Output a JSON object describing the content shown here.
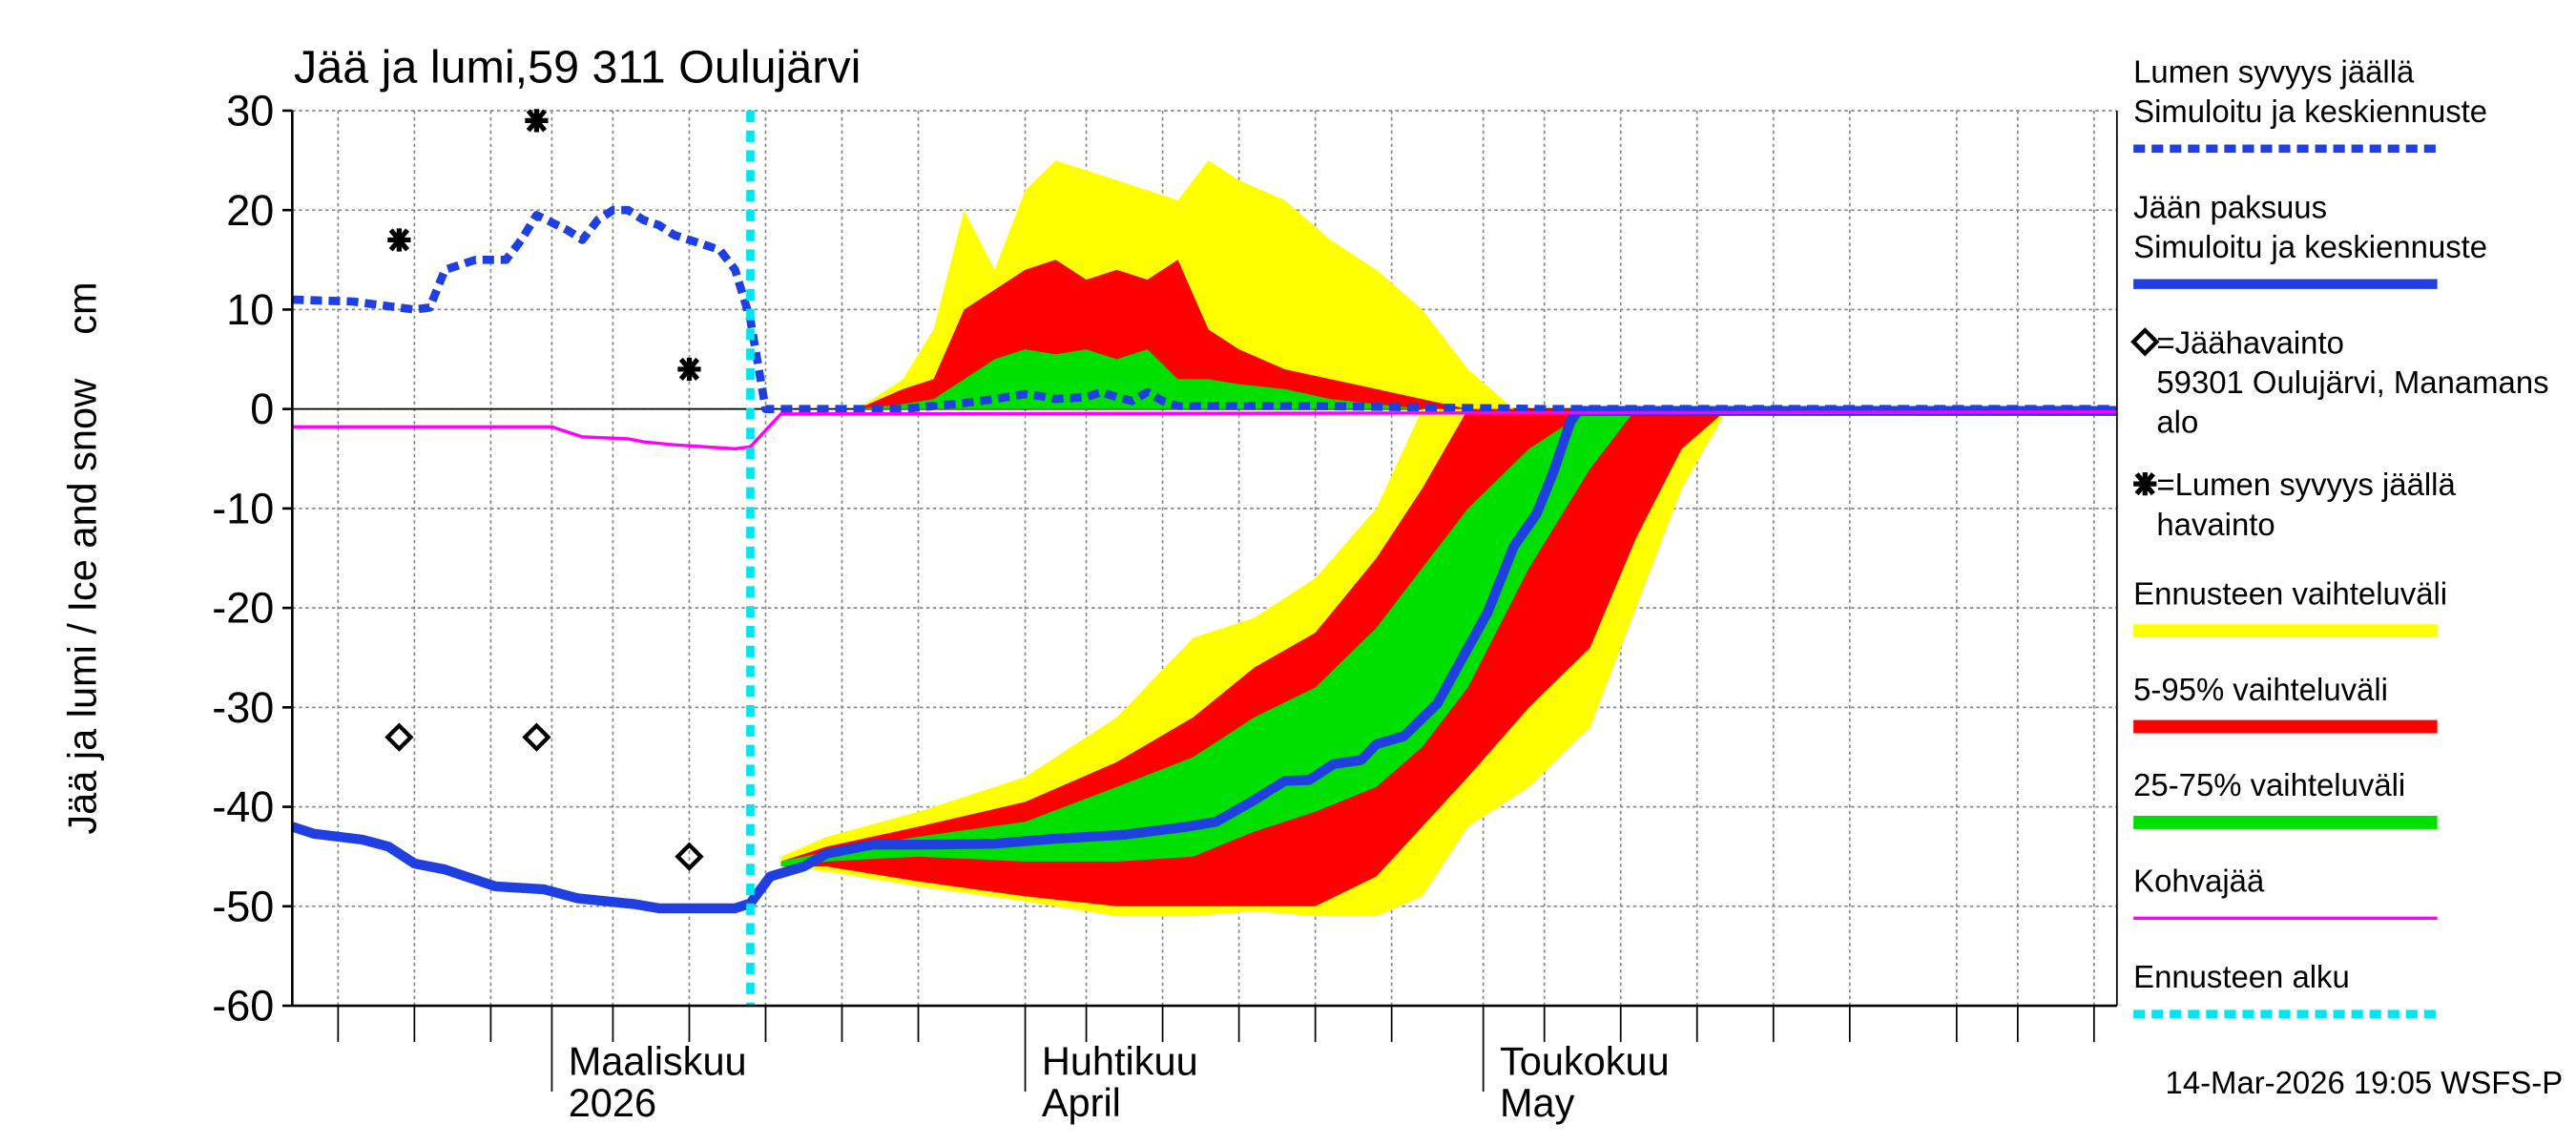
{
  "chart_data": {
    "type": "line",
    "title": "Jää ja lumi,59 311 Oulujärvi",
    "y_label": "Jää ja lumi / Ice and snow    cm",
    "footer": "14-Mar-2026 19:05 WSFS-P",
    "xlim": [
      43,
      162.5
    ],
    "ylim": [
      -60,
      30
    ],
    "yticks": [
      -60,
      -50,
      -40,
      -30,
      -20,
      -10,
      0,
      10,
      20,
      30
    ],
    "xticks": [
      {
        "value": 60,
        "label": [
          "Maaliskuu",
          "2026"
        ]
      },
      {
        "value": 91,
        "label": [
          "Huhtikuu",
          "April"
        ]
      },
      {
        "value": 121,
        "label": [
          "Toukokuu",
          "May"
        ]
      }
    ],
    "xgrid": [
      46,
      51,
      56,
      64,
      69,
      74,
      79,
      84,
      95,
      100,
      105,
      110,
      115,
      125,
      130,
      135,
      140,
      145,
      152,
      156,
      161
    ],
    "grid": true,
    "series": [
      {
        "name": [
          "Lumen syvyys jäällä",
          "Simuloitu ja keskiennuste"
        ],
        "kind": "line",
        "dashed": true,
        "width": 5,
        "color": "#1f3fe0",
        "x": [
          43,
          47,
          51,
          52,
          53,
          55,
          57,
          58,
          59,
          61,
          62,
          63,
          64,
          65,
          66,
          67,
          68,
          70,
          71,
          72,
          73,
          74,
          75,
          83,
          85,
          87,
          89,
          91,
          92,
          93,
          95,
          96,
          97,
          98,
          99,
          100,
          101,
          110,
          115,
          125,
          162
        ],
        "values": [
          11,
          10.8,
          10,
          10.2,
          14,
          15,
          15,
          17,
          19.5,
          18,
          17,
          19,
          20,
          20,
          19,
          18.5,
          17.5,
          16.5,
          16,
          14,
          9,
          0,
          0,
          0,
          0.3,
          0.6,
          1,
          1.5,
          1.3,
          1,
          1.2,
          1.7,
          1.2,
          0.8,
          1.7,
          0.8,
          0.3,
          0.3,
          0.2,
          0,
          0
        ]
      },
      {
        "name": [
          "Jään paksuus",
          "Simuloitu ja keskiennuste"
        ],
        "kind": "line",
        "dashed": false,
        "width": 6,
        "color": "#1f3fe0",
        "x": [
          43,
          44.4,
          47.6,
          49.3,
          51,
          53,
          56.3,
          59.5,
          61.7,
          65.5,
          67,
          72,
          73,
          74.3,
          76.5,
          78,
          81,
          84.5,
          89,
          93,
          97.5,
          101.6,
          103.5,
          105.8,
          108,
          109.6,
          111.2,
          113,
          114,
          115.8,
          118,
          119.5,
          121.3,
          123,
          124.5,
          125.6,
          126.7,
          127.2,
          162.5
        ],
        "values": [
          -42,
          -42.7,
          -43.3,
          -44,
          -45.7,
          -46.3,
          -48,
          -48.3,
          -49.2,
          -49.8,
          -50.2,
          -50.2,
          -49.7,
          -47,
          -46,
          -44.7,
          -43.8,
          -43.8,
          -43.7,
          -43.2,
          -42.8,
          -42,
          -41.5,
          -39.5,
          -37.4,
          -37.3,
          -35.7,
          -35.3,
          -33.7,
          -32.9,
          -29.6,
          -25.4,
          -20.4,
          -13.8,
          -10.5,
          -6.3,
          -1.3,
          -0.2,
          -0.2
        ]
      },
      {
        "name": [
          "=Jäähavainto",
          "59301 Oulujärvi, Manamans",
          "alo"
        ],
        "kind": "diamond",
        "color": "#000000",
        "x": [
          50,
          59,
          69
        ],
        "values": [
          -33,
          -33,
          -45
        ]
      },
      {
        "name": [
          "=Lumen syvyys jäällä",
          "havainto"
        ],
        "kind": "asterisk",
        "color": "#000000",
        "x": [
          50,
          59,
          69
        ],
        "values": [
          17,
          29,
          4
        ]
      },
      {
        "name": [
          "Ennusteen vaihteluväli"
        ],
        "kind": "band",
        "color": "#ffff00",
        "parts": [
          {
            "x": [
              80,
              83,
              85,
              87,
              89,
              91,
              93,
              95,
              97,
              99,
              101,
              103,
              105,
              108,
              111,
              114,
              117,
              120,
              123
            ],
            "high": [
              0,
              3,
              8,
              20,
              14,
              22,
              25,
              24,
              23,
              22,
              21,
              25,
              23,
              21,
              17,
              14,
              10,
              4,
              0
            ],
            "low": [
              0,
              0,
              0,
              0,
              0,
              0,
              0,
              0,
              0,
              0,
              0,
              0,
              0,
              0,
              0,
              0,
              0,
              0,
              0
            ]
          },
          {
            "x": [
              75,
              78,
              84,
              91,
              97,
              102,
              106,
              110,
              114,
              117,
              120,
              124,
              128,
              131,
              134,
              137
            ],
            "high": [
              -45,
              -43,
              -40.5,
              -37,
              -31,
              -23,
              -21,
              -17,
              -10,
              0,
              0,
              0,
              0,
              0,
              0,
              0
            ],
            "low": [
              -46,
              -46.5,
              -48,
              -49.5,
              -51,
              -51,
              -50.5,
              -51,
              -51,
              -49,
              -42,
              -38,
              -32,
              -20,
              -8,
              0
            ]
          }
        ]
      },
      {
        "name": [
          "5-95% vaihteluväli"
        ],
        "kind": "band",
        "color": "#ff0000",
        "parts": [
          {
            "x": [
              80,
              83,
              85,
              87,
              89,
              91,
              93,
              95,
              97,
              99,
              101,
              103,
              105,
              108,
              111,
              114,
              117,
              120,
              123
            ],
            "high": [
              0,
              2,
              3,
              10,
              12,
              14,
              15,
              13,
              14,
              13,
              15,
              8,
              6,
              4,
              3,
              2,
              1,
              0,
              0
            ],
            "low": [
              0,
              0,
              0,
              0,
              0,
              0,
              0,
              0,
              0,
              0,
              0,
              0,
              0,
              0,
              0,
              0,
              0,
              0,
              0
            ]
          },
          {
            "x": [
              75,
              78,
              84,
              91,
              97,
              102,
              106,
              110,
              114,
              117,
              120,
              124,
              128,
              131,
              134,
              137
            ],
            "high": [
              -45.5,
              -44,
              -42,
              -39.5,
              -35.5,
              -31,
              -26,
              -22.5,
              -15,
              -8,
              0,
              0,
              0,
              0,
              0,
              0
            ],
            "low": [
              -46,
              -46,
              -47.5,
              -49,
              -50,
              -50,
              -50,
              -50,
              -47,
              -42,
              -37,
              -30,
              -24,
              -13,
              -4,
              0
            ]
          }
        ]
      },
      {
        "name": [
          "25-75% vaihteluväli"
        ],
        "kind": "band",
        "color": "#00e000",
        "parts": [
          {
            "x": [
              80,
              83,
              85,
              87,
              89,
              91,
              93,
              95,
              97,
              99,
              101,
              103,
              105,
              108,
              111,
              114,
              117,
              120,
              123
            ],
            "high": [
              0,
              0.5,
              1,
              3,
              5,
              6,
              5.5,
              6,
              5,
              6,
              3,
              3,
              2.5,
              2,
              1,
              0.5,
              0,
              0,
              0
            ],
            "low": [
              0,
              0,
              0,
              0,
              0,
              0,
              0,
              0,
              0,
              0,
              0,
              0,
              0,
              0,
              0,
              0,
              0,
              0,
              0
            ]
          },
          {
            "x": [
              75,
              78,
              84,
              91,
              97,
              102,
              106,
              110,
              114,
              117,
              120,
              124,
              128,
              131,
              134,
              137
            ],
            "high": [
              -45.5,
              -44.5,
              -43,
              -41.5,
              -38,
              -35,
              -31,
              -28,
              -22,
              -16,
              -10,
              -4,
              0,
              0,
              0,
              0
            ],
            "low": [
              -46,
              -45.5,
              -45,
              -45.5,
              -45.5,
              -45,
              -42.5,
              -40.5,
              -38,
              -34,
              -28,
              -16,
              -6,
              0,
              0,
              0
            ]
          }
        ]
      },
      {
        "name": [
          "Kohvajää"
        ],
        "kind": "line",
        "dashed": false,
        "width": 2,
        "color": "#ff00ff",
        "x": [
          43,
          60,
          62,
          65,
          66,
          68,
          72,
          73,
          75,
          162.5
        ],
        "values": [
          -1.8,
          -1.8,
          -2.8,
          -3,
          -3.3,
          -3.6,
          -4,
          -3.8,
          -0.5,
          -0.3
        ]
      },
      {
        "name": [
          "Ennusteen alku"
        ],
        "kind": "vline",
        "color": "#00e5ee",
        "x": 73
      }
    ]
  }
}
